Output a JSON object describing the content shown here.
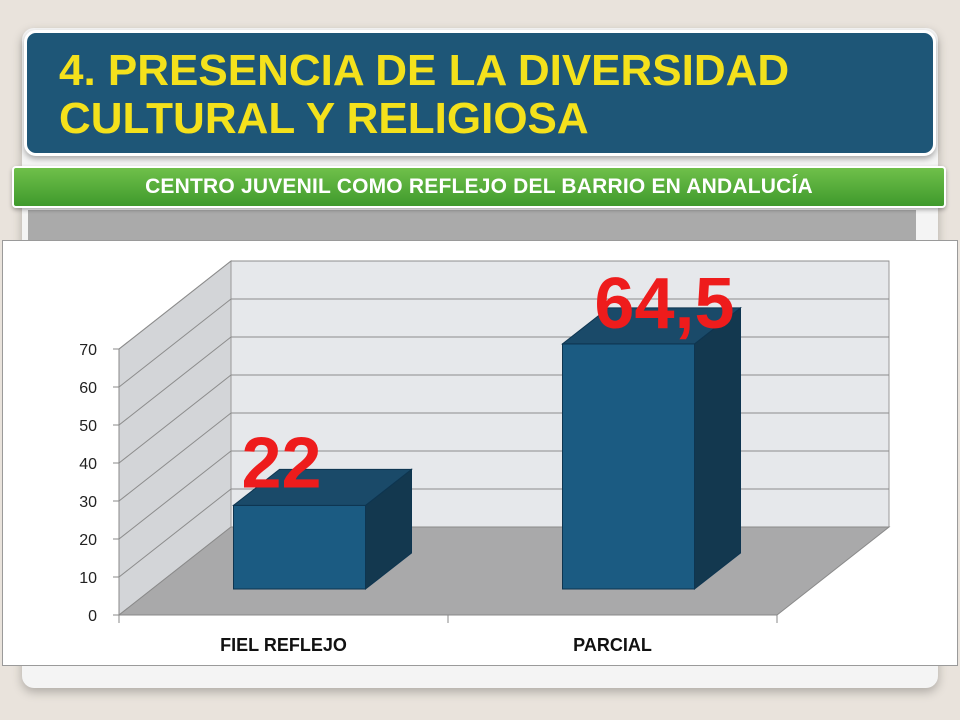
{
  "slide": {
    "title": "4. PRESENCIA DE LA DIVERSIDAD CULTURAL Y RELIGIOSA",
    "subtitle": "CENTRO JUVENIL COMO REFLEJO DEL BARRIO EN ANDALUCÍA"
  },
  "colors": {
    "title_bg": "#1e5677",
    "title_text": "#f4e11c",
    "subtitle_bg": "#4faa35",
    "bar_front": "#1b5b82",
    "bar_side": "#13384f",
    "bar_top": "#1a4a69",
    "data_label": "#ee1c1c"
  },
  "chart_data": {
    "type": "bar",
    "style": "3d",
    "categories": [
      "FIEL REFLEJO",
      "PARCIAL"
    ],
    "values": [
      22,
      64.5
    ],
    "data_labels": [
      "22",
      "64,5"
    ],
    "yticks": [
      "0",
      "10",
      "20",
      "30",
      "40",
      "50",
      "60",
      "70"
    ],
    "ylim": [
      0,
      70
    ],
    "grid": true,
    "legend": "none"
  }
}
